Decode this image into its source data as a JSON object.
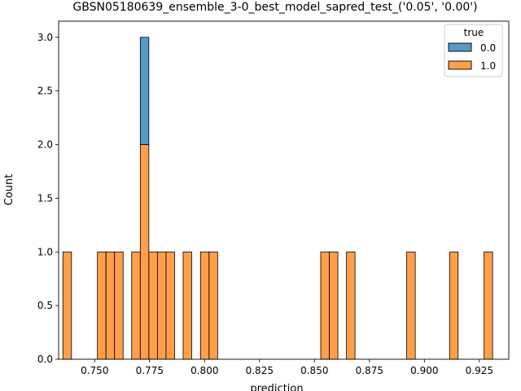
{
  "chart_data": {
    "type": "bar",
    "title": "GBSN05180639_ensemble_3-0_best_model_sapred_test_('0.05', '0.00')",
    "xlabel": "prediction",
    "ylabel": "Count",
    "xlim": [
      0.7336,
      0.9384
    ],
    "ylim": [
      0,
      3.15
    ],
    "bin_width": 0.0039,
    "stacked": true,
    "grid": false,
    "xticks": [
      "0.750",
      "0.775",
      "0.800",
      "0.825",
      "0.850",
      "0.875",
      "0.900",
      "0.925"
    ],
    "yticks": [
      "0.0",
      "0.5",
      "1.0",
      "1.5",
      "2.0",
      "2.5",
      "3.0"
    ],
    "legend": {
      "title": "true",
      "placement": "top-right",
      "entries": [
        {
          "label": "0.0",
          "color": "#1f77b4"
        },
        {
          "label": "1.0",
          "color": "#ff7f0e"
        }
      ]
    },
    "series": [
      {
        "name": "1.0",
        "color": "#ff7f0e",
        "bins": [
          {
            "x": 0.7375,
            "count": 1
          },
          {
            "x": 0.7532,
            "count": 1
          },
          {
            "x": 0.7571,
            "count": 1
          },
          {
            "x": 0.761,
            "count": 1
          },
          {
            "x": 0.7688,
            "count": 1
          },
          {
            "x": 0.7727,
            "count": 2
          },
          {
            "x": 0.7766,
            "count": 1
          },
          {
            "x": 0.7805,
            "count": 1
          },
          {
            "x": 0.7844,
            "count": 1
          },
          {
            "x": 0.7922,
            "count": 1
          },
          {
            "x": 0.8001,
            "count": 1
          },
          {
            "x": 0.804,
            "count": 1
          },
          {
            "x": 0.8548,
            "count": 1
          },
          {
            "x": 0.8587,
            "count": 1
          },
          {
            "x": 0.8665,
            "count": 1
          },
          {
            "x": 0.8939,
            "count": 1
          },
          {
            "x": 0.9134,
            "count": 1
          },
          {
            "x": 0.9291,
            "count": 1
          }
        ]
      },
      {
        "name": "0.0",
        "color": "#1f77b4",
        "bins": [
          {
            "x": 0.7727,
            "count": 1
          }
        ]
      }
    ]
  }
}
